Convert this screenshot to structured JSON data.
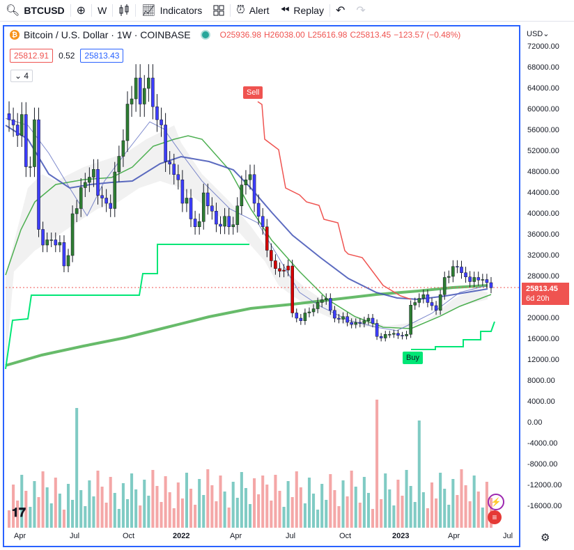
{
  "toolbar": {
    "symbol": "BTCUSD",
    "interval": "W",
    "indicators_label": "Indicators",
    "alert_label": "Alert",
    "replay_label": "Replay"
  },
  "legend": {
    "title": "Bitcoin / U.S. Dollar · 1W · COINBASE",
    "o": "O25936.98",
    "h": "H26038.00",
    "l": "L25616.98",
    "c": "C25813.45",
    "change": "−123.57 (−0.48%)"
  },
  "price_boxes": {
    "sell": "25812.91",
    "spread": "0.52",
    "buy": "25813.43"
  },
  "collapse_count": "4",
  "signals": {
    "sell": "Sell",
    "buy": "Buy"
  },
  "current_price": {
    "value": "25813.45",
    "countdown": "6d 20h"
  },
  "currency": "USD",
  "colors": {
    "up": "#26a69a",
    "down": "#ef5350",
    "accent": "#2962ff",
    "buy": "#00e676"
  },
  "chart_data": {
    "type": "candlestick",
    "price_axis": [
      "72000.00",
      "68000.00",
      "64000.00",
      "60000.00",
      "56000.00",
      "52000.00",
      "48000.00",
      "44000.00",
      "40000.00",
      "36000.00",
      "32000.00",
      "28000.00",
      "24000.00",
      "20000.00",
      "16000.00",
      "12000.00",
      "8000.00",
      "4000.00",
      "0.00",
      "-4000.00",
      "-8000.00",
      "-12000.00",
      "-16000.00"
    ],
    "time_axis": [
      "Apr",
      "Jul",
      "Oct",
      "2022",
      "Apr",
      "Jul",
      "Oct",
      "2023",
      "Apr",
      "Jul"
    ],
    "closes": [
      58000,
      57000,
      55000,
      59000,
      49000,
      49000,
      58000,
      37000,
      34000,
      35000,
      35000,
      34000,
      34500,
      30000,
      32000,
      40000,
      41000,
      45000,
      46000,
      47000,
      48500,
      43500,
      43000,
      42000,
      41000,
      48000,
      51000,
      54000,
      61000,
      62000,
      66000,
      61000,
      64000,
      66000,
      60500,
      58000,
      57000,
      50000,
      49500,
      47500,
      46500,
      42000,
      43000,
      39000,
      37500,
      38500,
      44000,
      41500,
      40500,
      38000,
      37600,
      39500,
      37500,
      37900,
      41500,
      45500,
      46500,
      47500,
      42000,
      39500,
      37500,
      33000,
      31000,
      29500,
      29000,
      29200,
      30000,
      21000,
      20000,
      19500,
      21000,
      21200,
      21800,
      23000,
      23500,
      23800,
      21500,
      20000,
      19800,
      20300,
      19200,
      18800,
      19200,
      19000,
      19500,
      20000,
      19000,
      16500,
      16200,
      16900,
      16900,
      17100,
      16700,
      16600,
      16900,
      22500,
      23000,
      23800,
      24500,
      23000,
      22400,
      21500,
      24500,
      27800,
      28000,
      29900,
      29800,
      28700,
      27900,
      27000,
      27800,
      27300,
      27400,
      26800,
      25813
    ]
  }
}
